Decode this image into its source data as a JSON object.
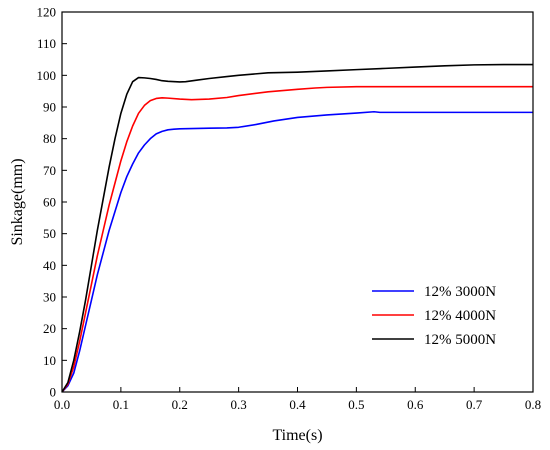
{
  "chart_data": {
    "type": "line",
    "title": "",
    "xlabel": "Time(s)",
    "ylabel": "Sinkage(mm)",
    "xlim": [
      0.0,
      0.8
    ],
    "ylim": [
      0,
      120
    ],
    "xticks": [
      0.0,
      0.1,
      0.2,
      0.3,
      0.4,
      0.5,
      0.6,
      0.7,
      0.8
    ],
    "xtick_labels": [
      "0.0",
      "0.1",
      "0.2",
      "0.3",
      "0.4",
      "0.5",
      "0.6",
      "0.7",
      "0.8"
    ],
    "yticks": [
      0,
      10,
      20,
      30,
      40,
      50,
      60,
      70,
      80,
      90,
      100,
      110,
      120
    ],
    "ytick_labels": [
      "0",
      "10",
      "20",
      "30",
      "40",
      "50",
      "60",
      "70",
      "80",
      "90",
      "100",
      "110",
      "120"
    ],
    "grid": false,
    "legend_position": "bottom-right",
    "series": [
      {
        "name": "12% 3000N",
        "color": "#0000ff",
        "x": [
          0.0,
          0.01,
          0.02,
          0.03,
          0.04,
          0.05,
          0.06,
          0.07,
          0.08,
          0.09,
          0.1,
          0.11,
          0.12,
          0.13,
          0.14,
          0.15,
          0.16,
          0.17,
          0.18,
          0.19,
          0.2,
          0.22,
          0.25,
          0.28,
          0.3,
          0.33,
          0.36,
          0.4,
          0.45,
          0.5,
          0.53,
          0.54,
          0.6,
          0.7,
          0.8
        ],
        "y": [
          0,
          2,
          6,
          13,
          21,
          29,
          37,
          44,
          51,
          57,
          63,
          68,
          72,
          75.5,
          78,
          80,
          81.5,
          82.3,
          82.8,
          83,
          83.1,
          83.2,
          83.3,
          83.4,
          83.6,
          84.5,
          85.6,
          86.7,
          87.5,
          88.1,
          88.5,
          88.3,
          88.3,
          88.3,
          88.3
        ]
      },
      {
        "name": "12% 4000N",
        "color": "#ff0000",
        "x": [
          0.0,
          0.01,
          0.02,
          0.03,
          0.04,
          0.05,
          0.06,
          0.07,
          0.08,
          0.09,
          0.1,
          0.11,
          0.12,
          0.13,
          0.14,
          0.15,
          0.16,
          0.17,
          0.18,
          0.2,
          0.22,
          0.25,
          0.28,
          0.3,
          0.35,
          0.4,
          0.43,
          0.45,
          0.5,
          0.6,
          0.7,
          0.8
        ],
        "y": [
          0,
          2.5,
          8,
          16,
          25,
          34,
          43,
          51,
          59,
          66,
          73,
          79,
          84,
          88,
          90.5,
          92,
          92.7,
          92.9,
          92.8,
          92.5,
          92.3,
          92.5,
          93.0,
          93.6,
          94.8,
          95.6,
          96.0,
          96.2,
          96.4,
          96.4,
          96.4,
          96.4
        ]
      },
      {
        "name": "12% 5000N",
        "color": "#000000",
        "x": [
          0.0,
          0.01,
          0.02,
          0.03,
          0.04,
          0.05,
          0.06,
          0.07,
          0.08,
          0.09,
          0.1,
          0.11,
          0.12,
          0.13,
          0.14,
          0.15,
          0.16,
          0.17,
          0.18,
          0.2,
          0.21,
          0.23,
          0.25,
          0.28,
          0.3,
          0.35,
          0.4,
          0.45,
          0.5,
          0.55,
          0.6,
          0.65,
          0.7,
          0.75,
          0.8
        ],
        "y": [
          0,
          3,
          10,
          19,
          29,
          40,
          51,
          61,
          71,
          80,
          88,
          94,
          98,
          99.3,
          99.2,
          99.0,
          98.7,
          98.3,
          98.1,
          97.9,
          98.0,
          98.5,
          99.0,
          99.6,
          100.0,
          100.8,
          101.0,
          101.4,
          101.8,
          102.2,
          102.6,
          103.0,
          103.3,
          103.4,
          103.4
        ]
      }
    ]
  }
}
